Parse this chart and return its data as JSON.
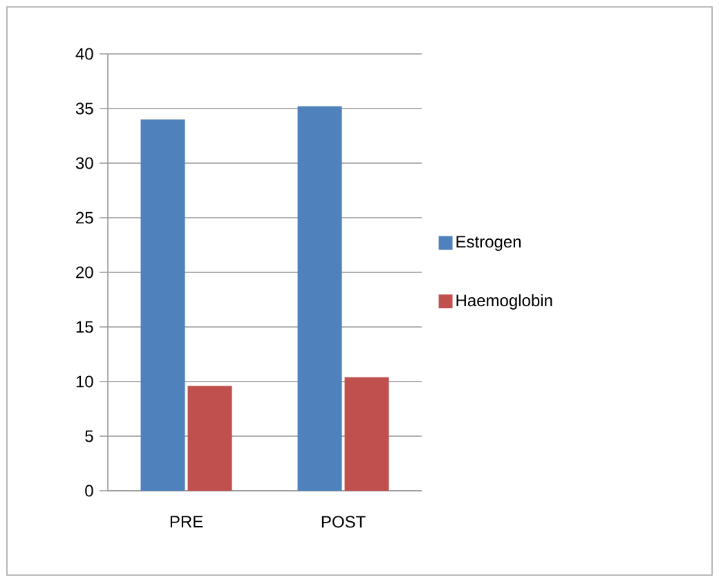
{
  "chart_data": {
    "type": "bar",
    "categories": [
      "PRE",
      "POST"
    ],
    "series": [
      {
        "name": "Estrogen",
        "color": "#4f81bd",
        "values": [
          34,
          35.2
        ]
      },
      {
        "name": "Haemoglobin",
        "color": "#c0504d",
        "values": [
          9.6,
          10.4
        ]
      }
    ],
    "ylim": [
      0,
      40
    ],
    "yticks": [
      0,
      5,
      10,
      15,
      20,
      25,
      30,
      35,
      40
    ],
    "grid": "y",
    "legend": "right"
  }
}
